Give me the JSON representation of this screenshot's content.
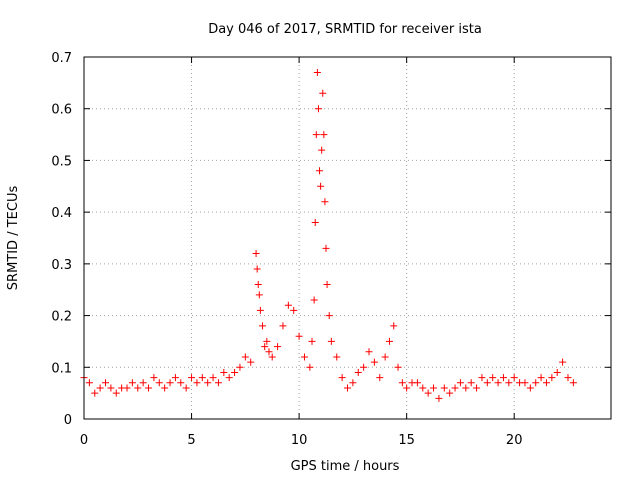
{
  "chart_data": {
    "type": "scatter",
    "title": "Day 046 of 2017, SRMTID for receiver ista",
    "xlabel": "GPS time / hours",
    "ylabel": "SRMTID / TECUs",
    "xlim": [
      0,
      24.5
    ],
    "ylim": [
      0,
      0.7
    ],
    "x_ticks": [
      0,
      5,
      10,
      15,
      20
    ],
    "x_tick_labels": [
      "0",
      "5",
      "10",
      "15",
      "20"
    ],
    "y_ticks": [
      0,
      0.1,
      0.2,
      0.3,
      0.4,
      0.5,
      0.6,
      0.7
    ],
    "y_tick_labels": [
      "0",
      "0.1",
      "0.2",
      "0.3",
      "0.4",
      "0.5",
      "0.6",
      "0.7"
    ],
    "grid": true,
    "legend": "none",
    "marker": "+",
    "series": [
      {
        "name": "SRMTID",
        "color": "#ff0000",
        "x": [
          0.0,
          0.25,
          0.5,
          0.75,
          1.0,
          1.25,
          1.5,
          1.75,
          2.0,
          2.25,
          2.5,
          2.75,
          3.0,
          3.25,
          3.5,
          3.75,
          4.0,
          4.25,
          4.5,
          4.75,
          5.0,
          5.25,
          5.5,
          5.75,
          6.0,
          6.25,
          6.5,
          6.75,
          7.0,
          7.25,
          7.5,
          7.75,
          8.0,
          8.05,
          8.1,
          8.15,
          8.2,
          8.3,
          8.4,
          8.5,
          8.6,
          8.75,
          9.0,
          9.25,
          9.5,
          9.75,
          10.0,
          10.25,
          10.5,
          10.6,
          10.7,
          10.75,
          10.8,
          10.85,
          10.9,
          10.95,
          11.0,
          11.05,
          11.1,
          11.15,
          11.2,
          11.25,
          11.3,
          11.4,
          11.5,
          11.75,
          12.0,
          12.25,
          12.5,
          12.75,
          13.0,
          13.25,
          13.5,
          13.75,
          14.0,
          14.2,
          14.4,
          14.6,
          14.8,
          15.0,
          15.25,
          15.5,
          15.75,
          16.0,
          16.25,
          16.5,
          16.75,
          17.0,
          17.25,
          17.5,
          17.75,
          18.0,
          18.25,
          18.5,
          18.75,
          19.0,
          19.25,
          19.5,
          19.75,
          20.0,
          20.25,
          20.5,
          20.75,
          21.0,
          21.25,
          21.5,
          21.75,
          22.0,
          22.25,
          22.5,
          22.75
        ],
        "y": [
          0.08,
          0.07,
          0.05,
          0.06,
          0.07,
          0.06,
          0.05,
          0.06,
          0.06,
          0.07,
          0.06,
          0.07,
          0.06,
          0.08,
          0.07,
          0.06,
          0.07,
          0.08,
          0.07,
          0.06,
          0.08,
          0.07,
          0.08,
          0.07,
          0.08,
          0.07,
          0.09,
          0.08,
          0.09,
          0.1,
          0.12,
          0.11,
          0.32,
          0.29,
          0.26,
          0.24,
          0.21,
          0.18,
          0.14,
          0.15,
          0.13,
          0.12,
          0.14,
          0.18,
          0.22,
          0.21,
          0.16,
          0.12,
          0.1,
          0.15,
          0.23,
          0.38,
          0.55,
          0.67,
          0.6,
          0.48,
          0.45,
          0.52,
          0.63,
          0.55,
          0.42,
          0.33,
          0.26,
          0.2,
          0.15,
          0.12,
          0.08,
          0.06,
          0.07,
          0.09,
          0.1,
          0.13,
          0.11,
          0.08,
          0.12,
          0.15,
          0.18,
          0.1,
          0.07,
          0.06,
          0.07,
          0.07,
          0.06,
          0.05,
          0.06,
          0.04,
          0.06,
          0.05,
          0.06,
          0.07,
          0.06,
          0.07,
          0.06,
          0.08,
          0.07,
          0.08,
          0.07,
          0.08,
          0.07,
          0.08,
          0.07,
          0.07,
          0.06,
          0.07,
          0.08,
          0.07,
          0.08,
          0.09,
          0.11,
          0.08,
          0.07
        ]
      }
    ]
  }
}
